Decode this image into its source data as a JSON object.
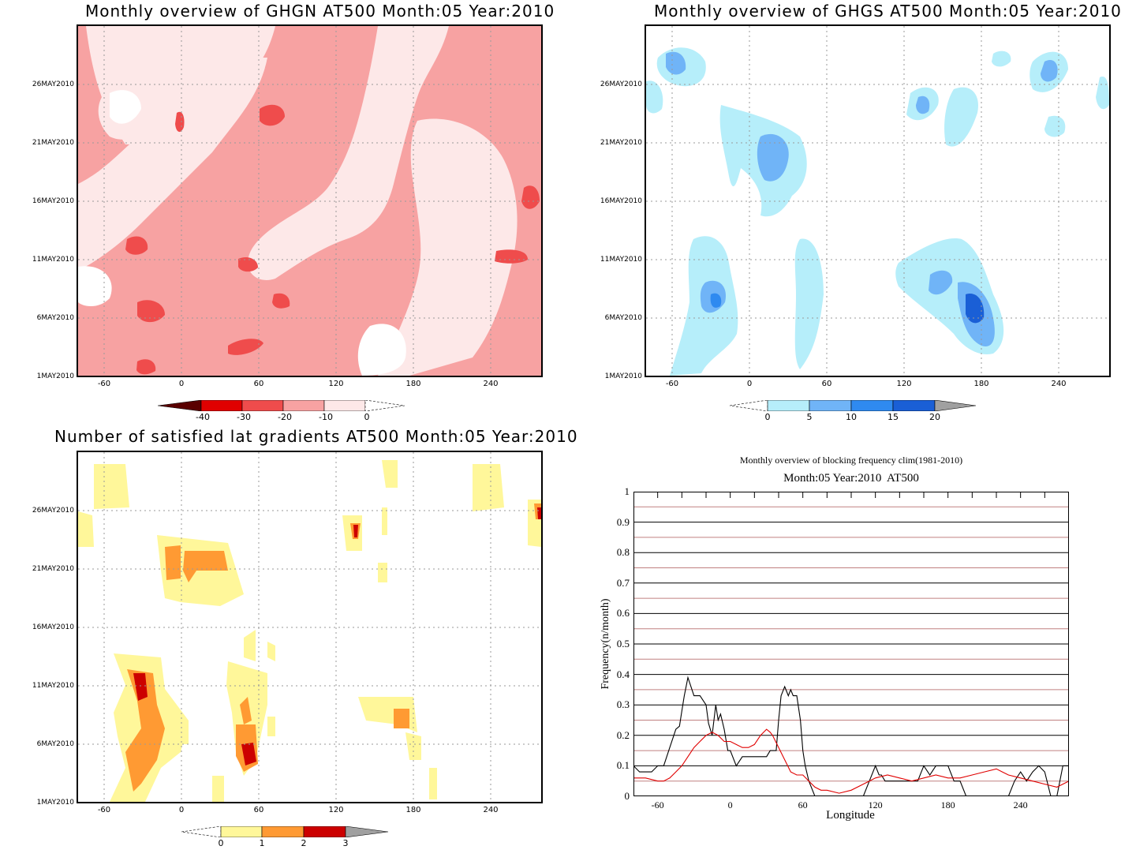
{
  "chart_data": [
    {
      "type": "heatmap",
      "title": "Monthly overview of GHGN AT500 Month:05 Year:2010",
      "x_ticks": [
        "-60",
        "0",
        "60",
        "120",
        "180",
        "240"
      ],
      "y_ticks": [
        "1MAY2010",
        "6MAY2010",
        "11MAY2010",
        "16MAY2010",
        "21MAY2010",
        "26MAY2010"
      ],
      "xlim": [
        -80,
        280
      ],
      "colorbar": [
        "-40",
        "-30",
        "-20",
        "-10",
        "0"
      ],
      "colors": [
        "#5a0000",
        "#e00000",
        "#ef4c4c",
        "#f7a2a2",
        "#fde8e8"
      ]
    },
    {
      "type": "heatmap",
      "title": "Monthly overview of GHGS AT500 Month:05 Year:2010",
      "x_ticks": [
        "-60",
        "0",
        "60",
        "120",
        "180",
        "240"
      ],
      "y_ticks": [
        "1MAY2010",
        "6MAY2010",
        "11MAY2010",
        "16MAY2010",
        "21MAY2010",
        "26MAY2010"
      ],
      "xlim": [
        -80,
        280
      ],
      "colorbar": [
        "0",
        "5",
        "10",
        "15",
        "20"
      ],
      "colors": [
        "#b6eefa",
        "#70b4f7",
        "#2f8af0",
        "#1a5fd6",
        "#a0a0a0"
      ]
    },
    {
      "type": "heatmap",
      "title": "Number of satisfied lat gradients AT500 Month:05 Year:2010",
      "x_ticks": [
        "-60",
        "0",
        "60",
        "120",
        "180",
        "240"
      ],
      "y_ticks": [
        "1MAY2010",
        "6MAY2010",
        "11MAY2010",
        "16MAY2010",
        "21MAY2010",
        "26MAY2010"
      ],
      "xlim": [
        -80,
        280
      ],
      "colorbar": [
        "0",
        "1",
        "2",
        "3"
      ],
      "colors": [
        "#fff79a",
        "#ff9a33",
        "#cc0000",
        "#a0a0a0"
      ]
    },
    {
      "type": "line",
      "title": "Monthly overview of blocking frequency clim(1981-2010)",
      "subtitle": "Month:05 Year:2010  AT500",
      "xlabel": "Longitude",
      "ylabel": "Frequency(n/month)",
      "xlim": [
        -80,
        280
      ],
      "ylim": [
        0,
        1
      ],
      "x_ticks": [
        "-60",
        "0",
        "60",
        "120",
        "180",
        "240"
      ],
      "y_ticks": [
        "0",
        "0.1",
        "0.2",
        "0.3",
        "0.4",
        "0.5",
        "0.6",
        "0.7",
        "0.8",
        "0.9",
        "1"
      ],
      "series": [
        {
          "color": "#000000",
          "x": [
            -80,
            -75,
            -70,
            -65,
            -60,
            -55,
            -50,
            -45,
            -42,
            -40,
            -38,
            -35,
            -30,
            -25,
            -20,
            -18,
            -15,
            -12,
            -10,
            -8,
            -5,
            -2,
            0,
            5,
            10,
            15,
            20,
            25,
            30,
            33,
            35,
            38,
            40,
            42,
            45,
            48,
            50,
            52,
            55,
            58,
            60,
            62,
            65,
            70,
            75,
            80,
            85,
            90,
            95,
            100,
            105,
            110,
            115,
            120,
            123,
            125,
            128,
            130,
            135,
            140,
            145,
            150,
            155,
            158,
            160,
            165,
            170,
            175,
            180,
            185,
            190,
            195,
            200,
            205,
            210,
            215,
            220,
            225,
            230,
            235,
            240,
            245,
            250,
            255,
            260,
            265,
            270,
            275,
            280
          ],
          "y": [
            0.1,
            0.08,
            0.08,
            0.08,
            0.1,
            0.1,
            0.16,
            0.22,
            0.23,
            0.28,
            0.33,
            0.39,
            0.33,
            0.33,
            0.3,
            0.24,
            0.2,
            0.3,
            0.25,
            0.27,
            0.22,
            0.15,
            0.15,
            0.1,
            0.13,
            0.13,
            0.13,
            0.13,
            0.13,
            0.15,
            0.15,
            0.15,
            0.25,
            0.33,
            0.36,
            0.33,
            0.35,
            0.33,
            0.33,
            0.25,
            0.15,
            0.1,
            0.05,
            0.0,
            0.0,
            0.0,
            0.0,
            0.0,
            0.0,
            0.0,
            0.0,
            0.0,
            0.05,
            0.1,
            0.07,
            0.07,
            0.05,
            0.05,
            0.05,
            0.05,
            0.05,
            0.05,
            0.05,
            0.08,
            0.1,
            0.07,
            0.1,
            0.1,
            0.1,
            0.05,
            0.05,
            0.0,
            0.0,
            0.0,
            0.0,
            0.0,
            0.0,
            0.0,
            0.0,
            0.05,
            0.08,
            0.05,
            0.08,
            0.1,
            0.08,
            0.0,
            0.0,
            0.1,
            0.1
          ]
        },
        {
          "color": "#e00000",
          "x": [
            -80,
            -70,
            -60,
            -55,
            -50,
            -45,
            -40,
            -35,
            -30,
            -25,
            -20,
            -15,
            -10,
            -5,
            0,
            5,
            10,
            15,
            20,
            25,
            30,
            33,
            35,
            40,
            45,
            50,
            55,
            60,
            65,
            70,
            75,
            80,
            90,
            100,
            110,
            115,
            120,
            130,
            140,
            150,
            160,
            170,
            180,
            190,
            200,
            210,
            220,
            230,
            240,
            250,
            260,
            270,
            280
          ],
          "y": [
            0.06,
            0.06,
            0.05,
            0.05,
            0.06,
            0.08,
            0.1,
            0.13,
            0.16,
            0.18,
            0.2,
            0.21,
            0.2,
            0.18,
            0.18,
            0.17,
            0.16,
            0.16,
            0.17,
            0.2,
            0.22,
            0.21,
            0.2,
            0.16,
            0.12,
            0.08,
            0.07,
            0.07,
            0.05,
            0.03,
            0.02,
            0.02,
            0.01,
            0.02,
            0.04,
            0.05,
            0.06,
            0.07,
            0.06,
            0.05,
            0.06,
            0.07,
            0.06,
            0.06,
            0.07,
            0.08,
            0.09,
            0.07,
            0.06,
            0.05,
            0.04,
            0.03,
            0.05
          ]
        }
      ]
    }
  ]
}
